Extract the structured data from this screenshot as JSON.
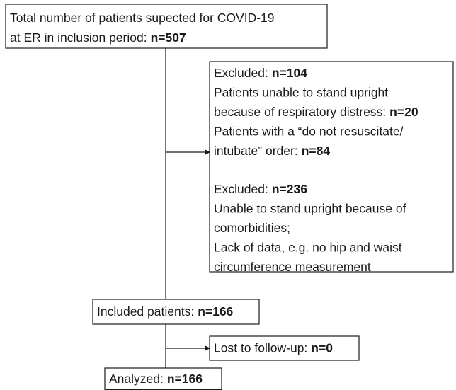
{
  "nodes": [
    {
      "lines": [
        {
          "text": "Total number of patients supected for COVID-19"
        },
        {
          "text": "at ER in inclusion period:",
          "bold": "n=507"
        }
      ]
    },
    {
      "lines": [
        {
          "text": "Excluded:",
          "bold": "n=104"
        },
        {
          "text": "Patients unable to stand upright"
        },
        {
          "text": "because of respiratory distress:",
          "bold": "n=20"
        },
        {
          "text": "Patients with a “do not resuscitate/"
        },
        {
          "text": "intubate” order:",
          "bold": "n=84"
        },
        {
          "text": "Excluded:",
          "bold": "n=236"
        },
        {
          "text": "Unable to stand upright because of"
        },
        {
          "text": "comorbidities;"
        },
        {
          "text": "Lack of data, e.g. no hip and waist"
        },
        {
          "text": "circumference measurement"
        }
      ]
    },
    {
      "lines": [
        {
          "text": "Included patients:",
          "bold": "n=166"
        }
      ]
    },
    {
      "lines": [
        {
          "text": "Lost to follow-up:",
          "bold": "n=0"
        }
      ]
    },
    {
      "lines": [
        {
          "text": "Analyzed:",
          "bold": "n=166"
        }
      ]
    }
  ]
}
